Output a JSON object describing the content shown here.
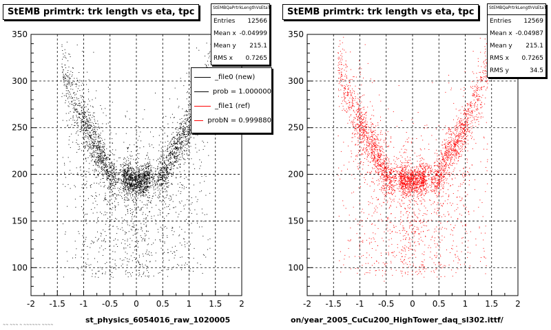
{
  "chart_data": [
    {
      "type": "scatter",
      "title": "StEMB primtrk: trk length vs eta, tpc",
      "xlabel": "st_physics_6054016_raw_1020005",
      "ylabel": "",
      "xlim": [
        -2,
        2
      ],
      "ylim": [
        70,
        350
      ],
      "xticks": [
        "-2",
        "-1.5",
        "-1",
        "-0.5",
        "0",
        "0.5",
        "1",
        "1.5",
        "2"
      ],
      "yticks": [
        "100",
        "150",
        "200",
        "250",
        "300",
        "350"
      ],
      "grid": true,
      "marker_color": "#000000",
      "stats": {
        "header": "StEMBQaPrtrkLengthVsEtaT",
        "rows": [
          {
            "label": "Entries",
            "value": "12566"
          },
          {
            "label": "Mean x",
            "value": "-0.04999"
          },
          {
            "label": "Mean y",
            "value": "215.1"
          },
          {
            "label": "RMS x",
            "value": "0.7265"
          }
        ]
      },
      "legend": {
        "placement": "top-right",
        "entries": [
          {
            "label": "_file0 (new)",
            "color": "#000000"
          },
          {
            "label": "prob = 1.000000",
            "color": "#000000"
          },
          {
            "label": "_file1 (ref)",
            "color": "#ff0000"
          },
          {
            "label": "probN = 0.999880",
            "color": "#ff0000"
          }
        ]
      }
    },
    {
      "type": "scatter",
      "title": "StEMB primtrk: trk length vs eta, tpc",
      "xlabel": "on/year_2005_CuCu200_HighTower_daq_sl302.ittf/",
      "ylabel": "",
      "xlim": [
        -2,
        2
      ],
      "ylim": [
        70,
        350
      ],
      "xticks": [
        "-2",
        "-1.5",
        "-1",
        "-0.5",
        "0",
        "0.5",
        "1",
        "1.5",
        "2"
      ],
      "yticks": [
        "100",
        "150",
        "200",
        "250",
        "300",
        "350"
      ],
      "grid": true,
      "marker_color": "#ff0000",
      "stats": {
        "header": "StEMBQaPrtrkLengthVsEtaT",
        "rows": [
          {
            "label": "Entries",
            "value": "12569"
          },
          {
            "label": "Mean x",
            "value": "-0.04987"
          },
          {
            "label": "Mean y",
            "value": "215.1"
          },
          {
            "label": "RMS x",
            "value": "0.7265"
          },
          {
            "label": "RMS y",
            "value": "34.5"
          }
        ]
      }
    }
  ],
  "footer_note": "~~ ~~~ ~ ~~~~~~ ~~~~"
}
